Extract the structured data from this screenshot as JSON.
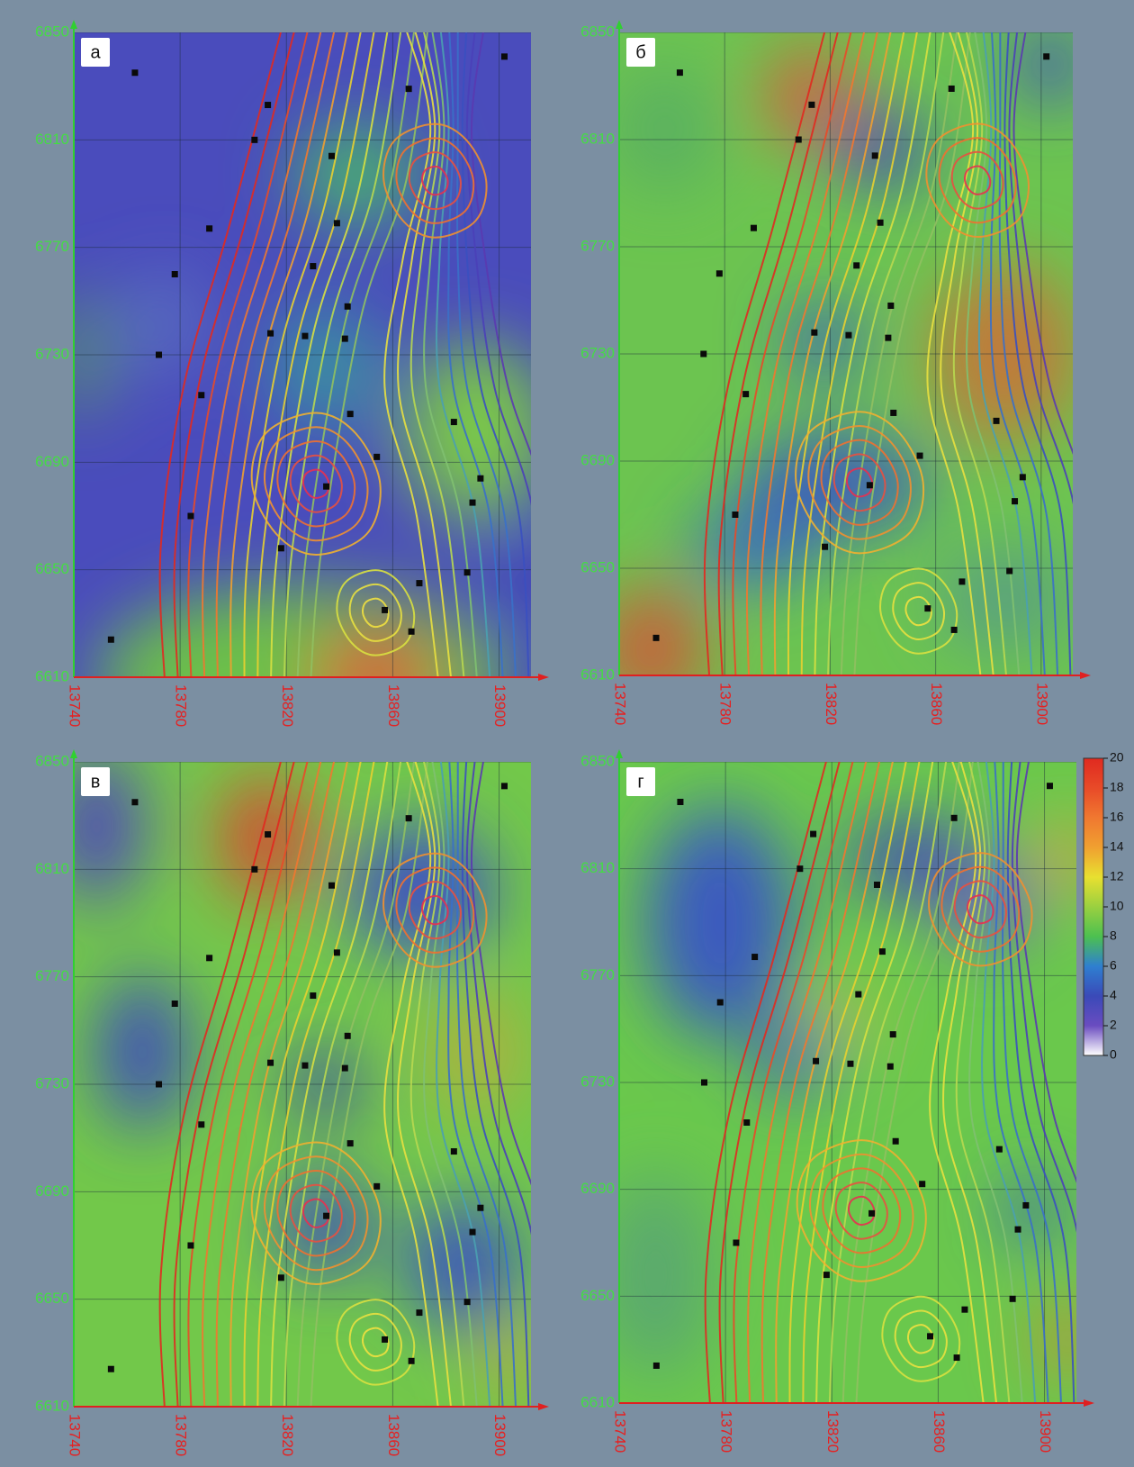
{
  "chart_data": [
    {
      "type": "map",
      "label": "а",
      "xlim": [
        13740,
        13912
      ],
      "ylim": [
        6610,
        6850
      ],
      "xticks": [
        13740,
        13780,
        13820,
        13860,
        13900
      ],
      "yticks": [
        6610,
        6650,
        6690,
        6730,
        6770,
        6810,
        6850
      ],
      "x": [
        13763,
        13813,
        13808,
        13866,
        13902,
        13837,
        13791,
        13839,
        13778,
        13830,
        13843,
        13814,
        13827,
        13842,
        13772,
        13788,
        13844,
        13883,
        13854,
        13893,
        13835,
        13890,
        13784,
        13818,
        13888,
        13870,
        13857,
        13867,
        13754
      ],
      "y": [
        6835,
        6823,
        6810,
        6829,
        6841,
        6804,
        6777,
        6779,
        6760,
        6763,
        6748,
        6738,
        6737,
        6736,
        6730,
        6715,
        6708,
        6705,
        6692,
        6684,
        6681,
        6675,
        6670,
        6658,
        6649,
        6645,
        6635,
        6627,
        6624
      ]
    },
    {
      "type": "map",
      "label": "б",
      "xlim": [
        13740,
        13912
      ],
      "ylim": [
        6610,
        6850
      ],
      "xticks": [
        13740,
        13780,
        13820,
        13860,
        13900
      ],
      "yticks": [
        6610,
        6650,
        6690,
        6730,
        6770,
        6810,
        6850
      ],
      "x": [
        13763,
        13813,
        13808,
        13866,
        13902,
        13837,
        13791,
        13839,
        13778,
        13830,
        13843,
        13814,
        13827,
        13842,
        13772,
        13788,
        13844,
        13883,
        13854,
        13893,
        13835,
        13890,
        13784,
        13818,
        13888,
        13870,
        13857,
        13867,
        13754
      ],
      "y": [
        6835,
        6823,
        6810,
        6829,
        6841,
        6804,
        6777,
        6779,
        6760,
        6763,
        6748,
        6738,
        6737,
        6736,
        6730,
        6715,
        6708,
        6705,
        6692,
        6684,
        6681,
        6675,
        6670,
        6658,
        6649,
        6645,
        6635,
        6627,
        6624
      ]
    },
    {
      "type": "map",
      "label": "в",
      "xlim": [
        13740,
        13912
      ],
      "ylim": [
        6610,
        6850
      ],
      "xticks": [
        13740,
        13780,
        13820,
        13860,
        13900
      ],
      "yticks": [
        6610,
        6650,
        6690,
        6730,
        6770,
        6810,
        6850
      ],
      "x": [
        13763,
        13813,
        13808,
        13866,
        13902,
        13837,
        13791,
        13839,
        13778,
        13830,
        13843,
        13814,
        13827,
        13842,
        13772,
        13788,
        13844,
        13883,
        13854,
        13893,
        13835,
        13890,
        13784,
        13818,
        13888,
        13870,
        13857,
        13867,
        13754
      ],
      "y": [
        6835,
        6823,
        6810,
        6829,
        6841,
        6804,
        6777,
        6779,
        6760,
        6763,
        6748,
        6738,
        6737,
        6736,
        6730,
        6715,
        6708,
        6705,
        6692,
        6684,
        6681,
        6675,
        6670,
        6658,
        6649,
        6645,
        6635,
        6627,
        6624
      ]
    },
    {
      "type": "map",
      "label": "г",
      "xlim": [
        13740,
        13912
      ],
      "ylim": [
        6610,
        6850
      ],
      "xticks": [
        13740,
        13780,
        13820,
        13860,
        13900
      ],
      "yticks": [
        6610,
        6650,
        6690,
        6730,
        6770,
        6810,
        6850
      ],
      "x": [
        13763,
        13813,
        13808,
        13866,
        13902,
        13837,
        13791,
        13839,
        13778,
        13830,
        13843,
        13814,
        13827,
        13842,
        13772,
        13788,
        13844,
        13883,
        13854,
        13893,
        13835,
        13890,
        13784,
        13818,
        13888,
        13870,
        13857,
        13867,
        13754
      ],
      "y": [
        6835,
        6823,
        6810,
        6829,
        6841,
        6804,
        6777,
        6779,
        6760,
        6763,
        6748,
        6738,
        6737,
        6736,
        6730,
        6715,
        6708,
        6705,
        6692,
        6684,
        6681,
        6675,
        6670,
        6658,
        6649,
        6645,
        6635,
        6627,
        6624
      ]
    },
    {
      "type": "colorbar",
      "ylim": [
        0,
        20
      ],
      "yticks": [
        0,
        2,
        4,
        6,
        8,
        10,
        12,
        14,
        16,
        18,
        20
      ],
      "colors": [
        "#ffffff",
        "#6a4cc0",
        "#3a4ab8",
        "#2f7fd0",
        "#4cc050",
        "#9ad040",
        "#e8e030",
        "#f0a030",
        "#f07830",
        "#e84a28",
        "#e02a20"
      ]
    }
  ]
}
